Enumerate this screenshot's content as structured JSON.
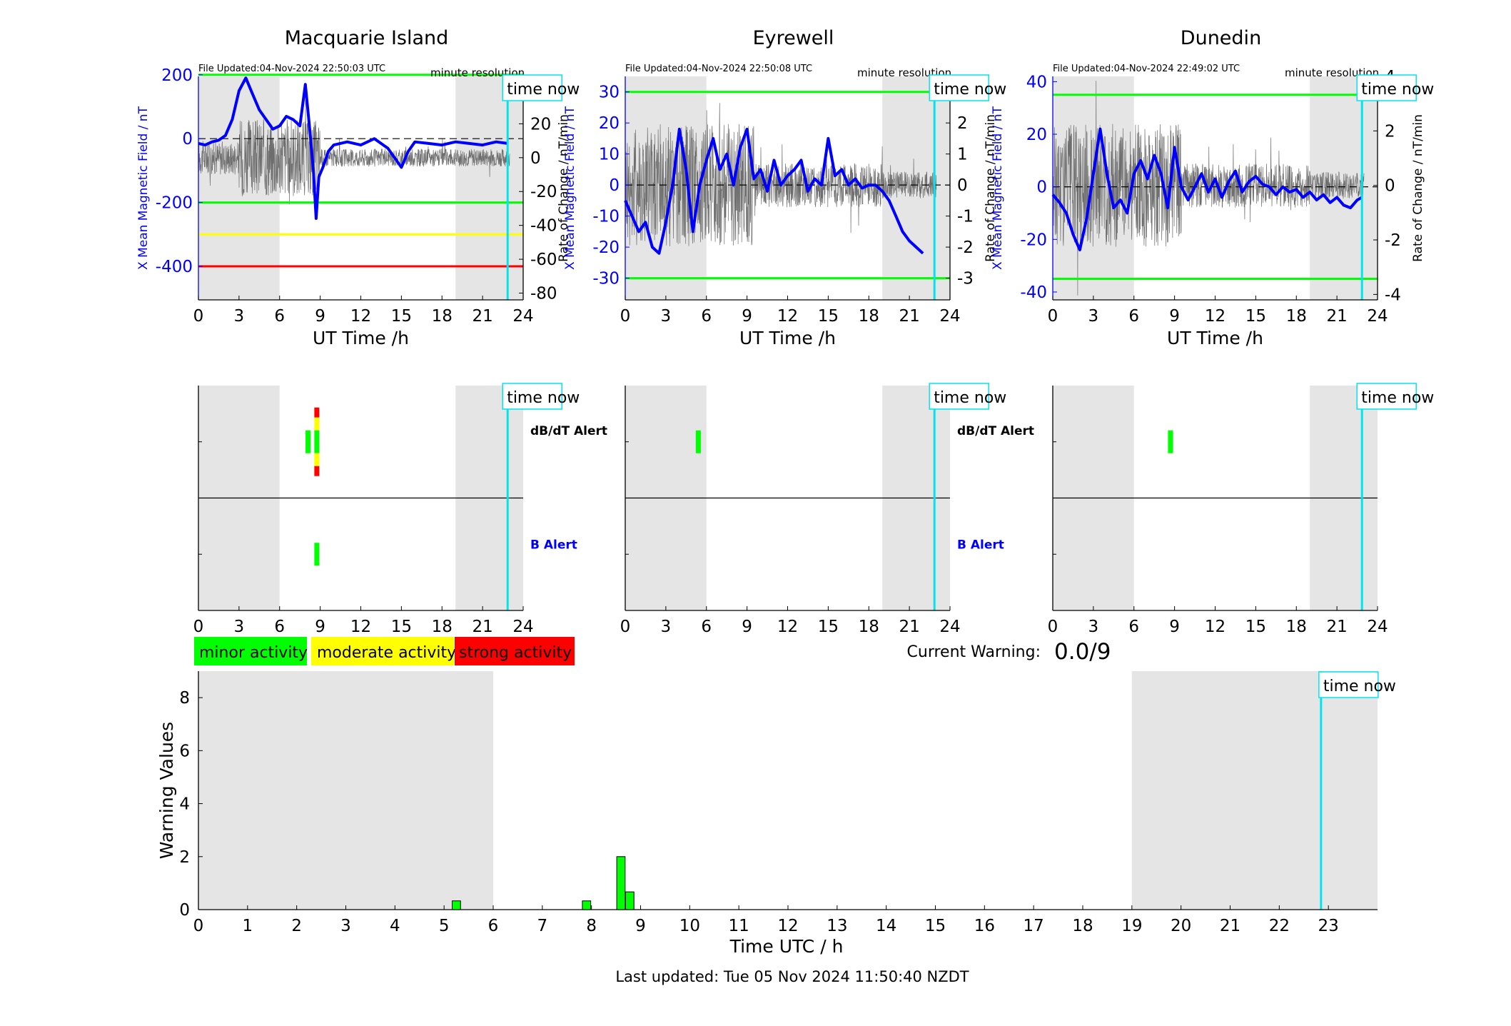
{
  "chart_data": [
    {
      "type": "line",
      "title": "Macquarie Island",
      "file_updated": "File Updated:04-Nov-2024 22:50:03 UTC",
      "resolution": "minute resolution",
      "time_now_label": "time now",
      "time_now": 22.85,
      "xlabel": "UT Time /h",
      "xlim": [
        0,
        24
      ],
      "xticks": [
        0,
        3,
        6,
        9,
        12,
        15,
        18,
        21,
        24
      ],
      "ylabel_left": "X Mean Magnetic Field / nT",
      "ylim_left": [
        -505,
        195
      ],
      "yticks_left": [
        -400,
        -200,
        0,
        200
      ],
      "ylabel_right": "Rate of Change / nT/min",
      "ylim_right": [
        -84,
        48
      ],
      "yticks_right": [
        -80,
        -60,
        -40,
        -20,
        0,
        20,
        40
      ],
      "night_shading": [
        [
          0,
          6
        ],
        [
          19,
          24
        ]
      ],
      "threshold_lines": [
        {
          "value": 200,
          "color": "#00ff00"
        },
        {
          "value": -200,
          "color": "#00ff00"
        },
        {
          "value": -300,
          "color": "#ffff00"
        },
        {
          "value": -400,
          "color": "#ff0000"
        }
      ],
      "series": [
        {
          "color": "#0000ff",
          "x": [
            0,
            0.5,
            1,
            1.5,
            2,
            2.5,
            3,
            3.5,
            4,
            4.5,
            5,
            5.5,
            6,
            6.5,
            7,
            7.5,
            7.9,
            8.2,
            8.5,
            8.7,
            8.9,
            9.2,
            9.6,
            10,
            11,
            12,
            13,
            14,
            14.5,
            15,
            15.5,
            16,
            17,
            18,
            19,
            20,
            21,
            22,
            22.85
          ],
          "values": [
            -15,
            -20,
            -10,
            -5,
            10,
            60,
            150,
            190,
            140,
            90,
            60,
            30,
            40,
            70,
            60,
            40,
            170,
            40,
            -100,
            -250,
            -120,
            -90,
            -40,
            -20,
            -10,
            -20,
            0,
            -30,
            -60,
            -90,
            -40,
            -10,
            -15,
            -20,
            -10,
            -15,
            -20,
            -10,
            -15
          ]
        }
      ]
    },
    {
      "type": "line",
      "title": "Eyrewell",
      "file_updated": "File Updated:04-Nov-2024 22:50:08 UTC",
      "resolution": "minute resolution",
      "time_now_label": "time now",
      "time_now": 22.85,
      "xlabel": "UT Time /h",
      "xlim": [
        0,
        24
      ],
      "xticks": [
        0,
        3,
        6,
        9,
        12,
        15,
        18,
        21,
        24
      ],
      "ylabel_left": "X Mean Magnetic Field / nT",
      "ylim_left": [
        -37,
        35
      ],
      "yticks_left": [
        -30,
        -20,
        -10,
        0,
        10,
        20,
        30
      ],
      "ylabel_right": "Rate of Change / nT/min",
      "ylim_right": [
        -3.7,
        3.5
      ],
      "yticks_right": [
        -3,
        -2,
        -1,
        0,
        1,
        2,
        3
      ],
      "night_shading": [
        [
          0,
          6
        ],
        [
          19,
          24
        ]
      ],
      "threshold_lines": [
        {
          "value": 30,
          "color": "#00ff00"
        },
        {
          "value": -30,
          "color": "#00ff00"
        }
      ],
      "series": [
        {
          "color": "#0000ff",
          "x": [
            0,
            0.5,
            1,
            1.5,
            2,
            2.5,
            3,
            3.5,
            4,
            4.5,
            5,
            5.5,
            6,
            6.5,
            7,
            7.5,
            8,
            8.5,
            9,
            9.5,
            10,
            10.5,
            11,
            11.5,
            12,
            12.5,
            13,
            13.5,
            14,
            14.5,
            15,
            15.5,
            16,
            16.5,
            17,
            17.5,
            18,
            18.5,
            19,
            19.5,
            20,
            20.5,
            21,
            21.5,
            22
          ],
          "values": [
            -5,
            -10,
            -15,
            -12,
            -20,
            -22,
            -12,
            0,
            18,
            5,
            -15,
            0,
            8,
            15,
            5,
            10,
            0,
            12,
            18,
            2,
            5,
            -2,
            8,
            0,
            3,
            5,
            8,
            -2,
            2,
            0,
            15,
            3,
            5,
            0,
            2,
            -1,
            0,
            0,
            -2,
            -5,
            -10,
            -15,
            -18,
            -20,
            -22
          ]
        }
      ]
    },
    {
      "type": "line",
      "title": "Dunedin",
      "file_updated": "File Updated:04-Nov-2024 22:49:02 UTC",
      "resolution": "minute resolution",
      "time_now_label": "time now",
      "time_now": 22.85,
      "xlabel": "UT Time /h",
      "xlim": [
        0,
        24
      ],
      "xticks": [
        0,
        3,
        6,
        9,
        12,
        15,
        18,
        21,
        24
      ],
      "ylabel_left": "X Mean Magnetic Field / nT",
      "ylim_left": [
        -43,
        42
      ],
      "yticks_left": [
        -40,
        -20,
        0,
        20,
        40
      ],
      "ylabel_right": "Rate of Change / nT/min",
      "ylim_right": [
        -4.2,
        4
      ],
      "yticks_right": [
        -4,
        -2,
        0,
        2,
        4
      ],
      "night_shading": [
        [
          0,
          6
        ],
        [
          19,
          24
        ]
      ],
      "threshold_lines": [
        {
          "value": 35,
          "color": "#00ff00"
        },
        {
          "value": -35,
          "color": "#00ff00"
        }
      ],
      "series": [
        {
          "color": "#0000ff",
          "x": [
            0,
            0.5,
            1,
            1.5,
            2,
            2.5,
            3,
            3.5,
            4,
            4.5,
            5,
            5.5,
            6,
            6.5,
            7,
            7.5,
            8,
            8.5,
            9,
            9.5,
            10,
            10.5,
            11,
            11.5,
            12,
            12.5,
            13,
            13.5,
            14,
            14.5,
            15,
            15.5,
            16,
            16.5,
            17,
            17.5,
            18,
            18.5,
            19,
            19.5,
            20,
            20.5,
            21,
            21.5,
            22,
            22.5,
            22.85
          ],
          "values": [
            -3,
            -6,
            -10,
            -18,
            -24,
            -12,
            5,
            22,
            5,
            -8,
            -5,
            -10,
            5,
            10,
            3,
            12,
            5,
            -8,
            15,
            0,
            -5,
            0,
            5,
            -2,
            3,
            -4,
            2,
            6,
            -2,
            2,
            4,
            1,
            0,
            -3,
            0,
            -2,
            -1,
            -4,
            -2,
            -5,
            -3,
            -6,
            -4,
            -7,
            -8,
            -5,
            -4
          ]
        }
      ]
    },
    {
      "type": "bar",
      "xlim": [
        0,
        24
      ],
      "xticks": [
        0,
        3,
        6,
        9,
        12,
        15,
        18,
        21,
        24
      ],
      "time_now_label": "time now",
      "time_now": 22.85,
      "night_shading": [
        [
          0,
          6
        ],
        [
          19,
          24
        ]
      ],
      "rows": [
        "dB/dT Alert",
        "B Alert"
      ],
      "row_colors": [
        "#000000",
        "#0000ff"
      ],
      "alerts": [
        {
          "x": 8.1,
          "row": 0,
          "color": "#00ff00",
          "level": 1
        },
        {
          "x": 8.75,
          "row": 0,
          "color": "#ff0000",
          "level": 3
        },
        {
          "x": 8.75,
          "row": 1,
          "color": "#00ff00",
          "level": 1
        }
      ]
    },
    {
      "type": "bar",
      "xlim": [
        0,
        24
      ],
      "xticks": [
        0,
        3,
        6,
        9,
        12,
        15,
        18,
        21,
        24
      ],
      "time_now_label": "time now",
      "time_now": 22.85,
      "night_shading": [
        [
          0,
          6
        ],
        [
          19,
          24
        ]
      ],
      "rows": [
        "dB/dT Alert",
        "B Alert"
      ],
      "row_colors": [
        "#000000",
        "#0000ff"
      ],
      "alerts": [
        {
          "x": 5.4,
          "row": 0,
          "color": "#00ff00",
          "level": 1
        }
      ]
    },
    {
      "type": "bar",
      "xlim": [
        0,
        24
      ],
      "xticks": [
        0,
        3,
        6,
        9,
        12,
        15,
        18,
        21,
        24
      ],
      "time_now_label": "time now",
      "time_now": 22.85,
      "night_shading": [
        [
          0,
          6
        ],
        [
          19,
          24
        ]
      ],
      "rows": [
        "dB/dT Alert",
        "B Alert"
      ],
      "alerts": [
        {
          "x": 8.7,
          "row": 0,
          "color": "#00ff00",
          "level": 1
        }
      ]
    },
    {
      "type": "bar",
      "ylabel": "Warning Values",
      "xlabel": "Time UTC / h",
      "xlim": [
        0,
        24
      ],
      "ylim": [
        0,
        9
      ],
      "xticks": [
        0,
        1,
        2,
        3,
        4,
        5,
        6,
        7,
        8,
        9,
        10,
        11,
        12,
        13,
        14,
        15,
        16,
        17,
        18,
        19,
        20,
        21,
        22,
        23
      ],
      "yticks": [
        0,
        2,
        4,
        6,
        8
      ],
      "night_shading": [
        [
          0,
          6
        ],
        [
          19,
          24
        ]
      ],
      "time_now_label": "time now",
      "time_now": 22.85,
      "bars": [
        {
          "x": 5.25,
          "value": 0.33
        },
        {
          "x": 7.9,
          "value": 0.33
        },
        {
          "x": 8.6,
          "value": 2.0
        },
        {
          "x": 8.78,
          "value": 0.67
        }
      ]
    }
  ],
  "legend": {
    "items": [
      {
        "label": "minor activity",
        "color": "#00ff00"
      },
      {
        "label": "moderate activity",
        "color": "#ffff00"
      },
      {
        "label": "strong activity",
        "color": "#ff0000"
      }
    ]
  },
  "current_warning": {
    "label": "Current Warning:",
    "value": "0.0/9"
  },
  "footer": {
    "last_updated": "Last updated: Tue 05 Nov 2024 11:50:40 NZDT"
  }
}
